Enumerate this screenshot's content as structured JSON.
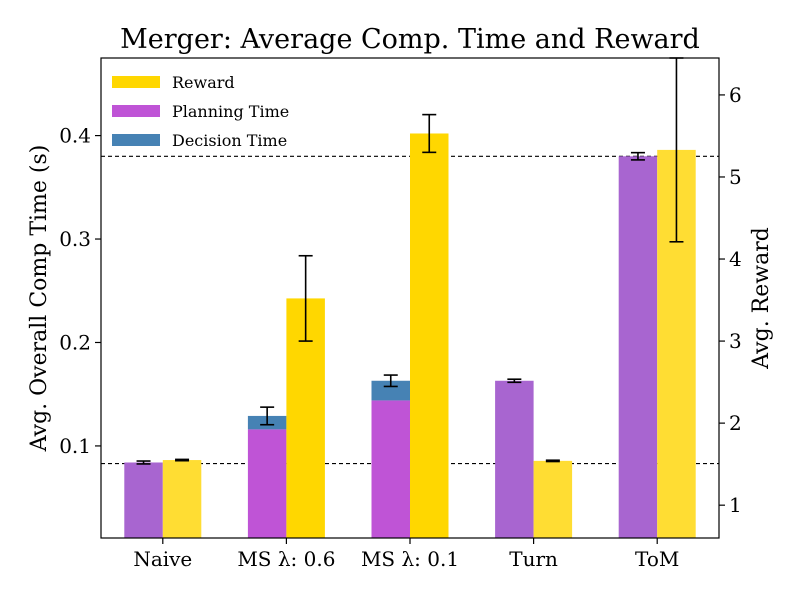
{
  "chart_data": {
    "type": "bar",
    "title": "Merger: Average Comp. Time and Reward",
    "xlabel": "",
    "ylabel_left": "Avg. Overall Comp Time (s)",
    "ylabel_right": "Avg. Reward",
    "categories": [
      "Naive",
      "MS λ: 0.6",
      "MS λ: 0.1",
      "Turn",
      "ToM"
    ],
    "ylim_left": [
      0.011,
      0.475
    ],
    "ylim_right": [
      0.6,
      6.45
    ],
    "yticks_left": [
      0.1,
      0.2,
      0.3,
      0.4
    ],
    "yticks_right": [
      1,
      2,
      3,
      4,
      5,
      6
    ],
    "legend_position": "top-left",
    "grid": false,
    "series": [
      {
        "name": "Planning Time",
        "axis": "left",
        "values": [
          0.084,
          0.116,
          0.144,
          0.163,
          0.38
        ],
        "colors": [
          "#a865d0",
          "#bf54d6",
          "#bf54d6",
          "#a865d0",
          "#a865d0"
        ]
      },
      {
        "name": "Decision Time",
        "axis": "left",
        "stacked_on": "Planning Time",
        "values": [
          0,
          0.013,
          0.019,
          0,
          0
        ],
        "colors": [
          "#4682b4",
          "#4682b4",
          "#4682b4",
          "#4682b4",
          "#4682b4"
        ]
      },
      {
        "name": "Reward",
        "axis": "right",
        "values": [
          1.55,
          3.52,
          5.53,
          1.54,
          5.33
        ],
        "colors": [
          "#ffdd33",
          "#ffd700",
          "#ffd700",
          "#ffdd33",
          "#ffdd33"
        ]
      }
    ],
    "error_bars": {
      "time_total": [
        0.0014,
        0.0085,
        0.0055,
        0.0015,
        0.0035
      ],
      "reward": [
        0.008,
        0.52,
        0.23,
        0.008,
        1.12
      ]
    },
    "reference_lines": [
      {
        "axis": "left",
        "value": 0.083,
        "style": "dashed"
      },
      {
        "axis": "left",
        "value": 0.38,
        "style": "dashed"
      }
    ],
    "colors": {
      "reward": "#ffd700",
      "planning": "#bf54d6",
      "decision": "#4682b4"
    }
  }
}
